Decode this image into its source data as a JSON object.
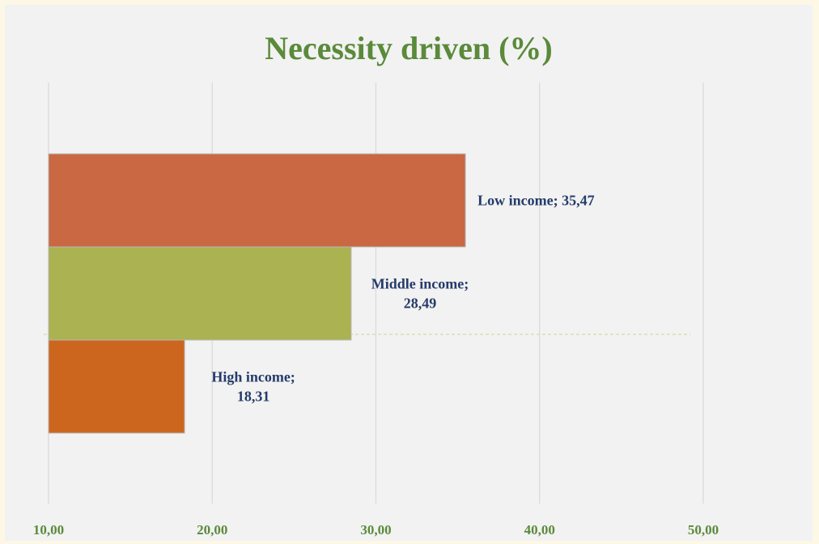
{
  "chart_data": {
    "type": "bar",
    "orientation": "horizontal",
    "title": "Necessity driven (%)",
    "xlabel": "",
    "ylabel": "",
    "xlim": [
      10,
      50
    ],
    "ticks": [
      "10,00",
      "20,00",
      "30,00",
      "40,00",
      "50,00"
    ],
    "tick_values": [
      10,
      20,
      30,
      40,
      50
    ],
    "grid": true,
    "legend": "none",
    "categories": [
      "Low income",
      "Middle income",
      "High income"
    ],
    "values": [
      35.47,
      28.49,
      18.31
    ],
    "data_labels": [
      [
        "Low income; 35,47"
      ],
      [
        "Middle income;",
        "28,49"
      ],
      [
        "High income;",
        "18,31"
      ]
    ],
    "colors": [
      "#c96843",
      "#aab251",
      "#cc661e"
    ]
  }
}
